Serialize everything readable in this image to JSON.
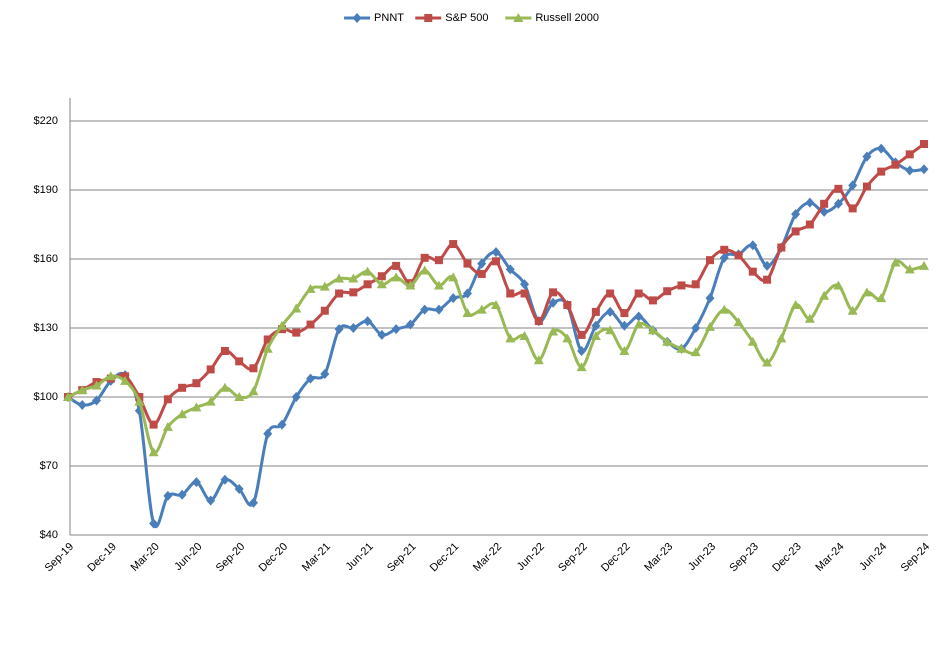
{
  "chart_data": {
    "type": "line",
    "categories": [
      "Sep-19",
      null,
      null,
      "Dec-19",
      null,
      null,
      "Mar-20",
      null,
      null,
      "Jun-20",
      null,
      null,
      "Sep-20",
      null,
      null,
      "Dec-20",
      null,
      null,
      "Mar-21",
      null,
      null,
      "Jun-21",
      null,
      null,
      "Sep-21",
      null,
      null,
      "Dec-21",
      null,
      null,
      "Mar-22",
      null,
      null,
      "Jun-22",
      null,
      null,
      "Sep-22",
      null,
      null,
      "Dec-22",
      null,
      null,
      "Mar-23",
      null,
      null,
      "Jun-23",
      null,
      null,
      "Sep-23",
      null,
      null,
      "Dec-23",
      null,
      null,
      "Mar-24",
      null,
      null,
      "Jun-24",
      null,
      null,
      "Sep-24"
    ],
    "series": [
      {
        "name": "PNNT",
        "color": "#4a7ebb",
        "marker": "diamond",
        "values": [
          100,
          96.5,
          98.5,
          107,
          109.5,
          94,
          45,
          57,
          57.5,
          63,
          55,
          64,
          60,
          54,
          84,
          88,
          100,
          108,
          110,
          129.5,
          130,
          133,
          127,
          129.5,
          131.5,
          138,
          138,
          143,
          145,
          158,
          163,
          155.5,
          149,
          133,
          141,
          140,
          120,
          131,
          137,
          131,
          135,
          129,
          124,
          121,
          130,
          143,
          160.5,
          162,
          166,
          157,
          165,
          179.5,
          184.5,
          180.5,
          184,
          192,
          204.5,
          208,
          202,
          198.5,
          199
        ]
      },
      {
        "name": "S&P 500",
        "color": "#be4b48",
        "marker": "square",
        "values": [
          100,
          103,
          106.5,
          108,
          109,
          100,
          88,
          99,
          104,
          106,
          112,
          120,
          115.5,
          112.5,
          125,
          129.5,
          128,
          131.5,
          137.5,
          145,
          145.5,
          149,
          152.5,
          157,
          149.5,
          160.5,
          159.5,
          166.5,
          158,
          153.5,
          159,
          145,
          145,
          133,
          145.5,
          140,
          127,
          137,
          145,
          136.5,
          145,
          142,
          146,
          148.5,
          149,
          159.5,
          164,
          161.5,
          154.5,
          151,
          165,
          172,
          175,
          184,
          190.5,
          182,
          191.5,
          198,
          201,
          205.5,
          210
        ]
      },
      {
        "name": "Russell 2000",
        "color": "#98b954",
        "marker": "triangle",
        "values": [
          100,
          103,
          105,
          109,
          107,
          98,
          76,
          87,
          92.5,
          95.5,
          98,
          104,
          100,
          102.5,
          121,
          131,
          138.5,
          147,
          148,
          151.5,
          151.5,
          154.5,
          149,
          152,
          148.5,
          155,
          148.5,
          152,
          136.5,
          138,
          140,
          125.5,
          126.5,
          116,
          128.5,
          125.5,
          113,
          126.5,
          129,
          120,
          131.5,
          129,
          124,
          121,
          119.5,
          130.5,
          138,
          132.5,
          124,
          115,
          125.5,
          140,
          134,
          144,
          148.5,
          137.5,
          145.5,
          143,
          158.5,
          155.5,
          157
        ]
      }
    ],
    "ylim": [
      40,
      220
    ],
    "yticks": [
      {
        "value": 40,
        "label": "$40"
      },
      {
        "value": 70,
        "label": "$70"
      },
      {
        "value": 100,
        "label": "$100"
      },
      {
        "value": 130,
        "label": "$130"
      },
      {
        "value": 160,
        "label": "$160"
      },
      {
        "value": 190,
        "label": "$190"
      },
      {
        "value": 220,
        "label": "$220"
      }
    ],
    "grid": true,
    "legend": "top"
  }
}
